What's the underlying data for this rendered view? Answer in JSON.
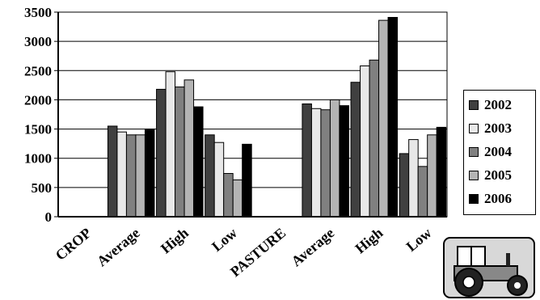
{
  "chart_data": {
    "type": "bar",
    "categories": [
      "CROP",
      "Average",
      "High",
      "Low",
      "PASTURE",
      "Average",
      "High",
      "Low"
    ],
    "series": [
      {
        "name": "2002",
        "values": [
          0,
          1550,
          2180,
          1400,
          0,
          1930,
          2300,
          1080
        ],
        "color": "#404040"
      },
      {
        "name": "2003",
        "values": [
          0,
          1450,
          2480,
          1270,
          0,
          1850,
          2580,
          1320
        ],
        "color": "#e8e8e8"
      },
      {
        "name": "2004",
        "values": [
          0,
          1400,
          2220,
          740,
          0,
          1830,
          2680,
          860
        ],
        "color": "#808080"
      },
      {
        "name": "2005",
        "values": [
          0,
          1400,
          2340,
          630,
          0,
          2000,
          3360,
          1400
        ],
        "color": "#b4b4b4"
      },
      {
        "name": "2006",
        "values": [
          0,
          1500,
          1880,
          1240,
          0,
          1900,
          3410,
          1530
        ],
        "color": "#000000"
      }
    ],
    "yticks": [
      0,
      500,
      1000,
      1500,
      2000,
      2500,
      3000,
      3500
    ],
    "ylim": [
      0,
      3500
    ],
    "grid": true,
    "legend_position": "right"
  },
  "clipart": {
    "icon": "tractor-icon"
  }
}
